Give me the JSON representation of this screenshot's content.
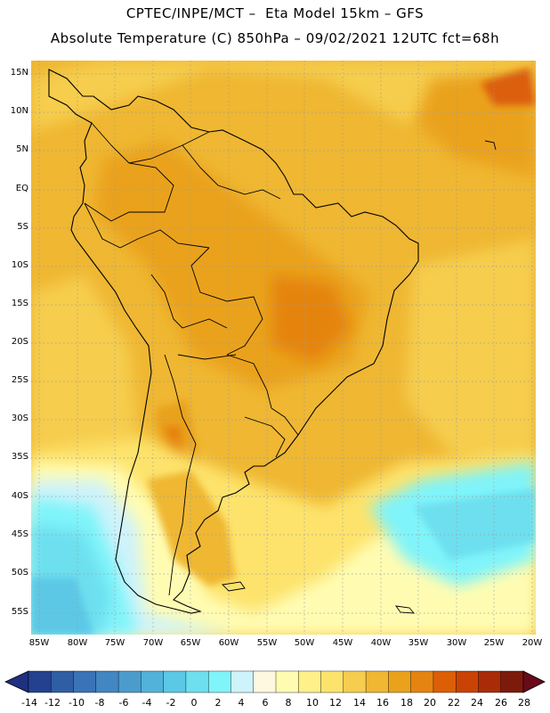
{
  "header": {
    "line1": "CPTEC/INPE/MCT –  Eta Model 15km – GFS",
    "line2": "Absolute Temperature (C) 850hPa – 09/02/2021 12UTC fct=68h"
  },
  "axes": {
    "lat_labels": [
      "15N",
      "10N",
      "5N",
      "EQ",
      "5S",
      "10S",
      "15S",
      "20S",
      "25S",
      "30S",
      "35S",
      "40S",
      "45S",
      "50S",
      "55S"
    ],
    "lon_labels": [
      "85W",
      "80W",
      "75W",
      "70W",
      "65W",
      "60W",
      "55W",
      "50W",
      "45W",
      "40W",
      "35W",
      "30W",
      "25W",
      "20W"
    ]
  },
  "colorbar": {
    "labels": [
      "-14",
      "-12",
      "-10",
      "-8",
      "-6",
      "-4",
      "-2",
      "0",
      "2",
      "4",
      "6",
      "8",
      "10",
      "12",
      "14",
      "16",
      "18",
      "20",
      "22",
      "24",
      "26",
      "28"
    ],
    "colors": [
      "#23418f",
      "#2f5ea5",
      "#3a74b6",
      "#4286c2",
      "#4b9ccc",
      "#52b2da",
      "#5bc8e6",
      "#6ddfef",
      "#7ff4fa",
      "#cff3fb",
      "#fff8e0",
      "#fffcb2",
      "#fff08a",
      "#fde36c",
      "#f6cd4e",
      "#efb732",
      "#eaa21d",
      "#e58410",
      "#dc5f07",
      "#c84304",
      "#a92c08",
      "#7c1b0c"
    ],
    "under_color": "#1f2f82",
    "over_color": "#6a0a18"
  }
}
